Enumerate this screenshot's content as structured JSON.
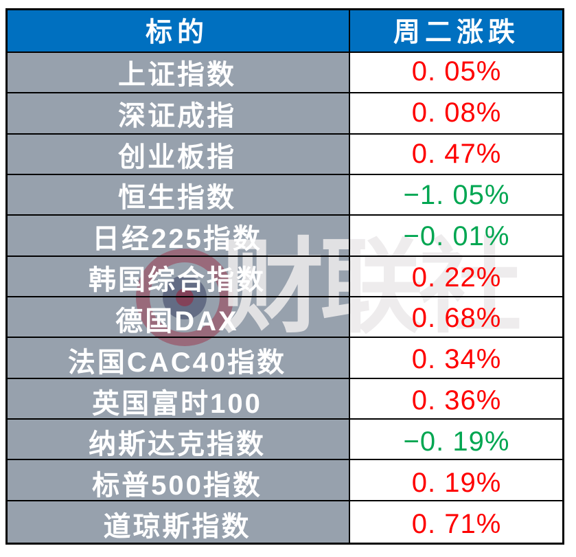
{
  "chart_data": {
    "type": "table",
    "title": "",
    "columns": [
      "标的",
      "周二涨跌"
    ],
    "categories": [
      "上证指数",
      "深证成指",
      "创业板指",
      "恒生指数",
      "日经225指数",
      "韩国综合指数",
      "德国DAX",
      "法国CAC40指数",
      "英国富时100",
      "纳斯达克指数",
      "标普500指数",
      "道琼斯指数"
    ],
    "values_pct": [
      0.05,
      0.08,
      0.47,
      -1.05,
      -0.01,
      0.22,
      0.68,
      0.34,
      0.36,
      -0.19,
      0.19,
      0.71
    ]
  },
  "table": {
    "header": {
      "target": "标的",
      "change": "周二涨跌"
    },
    "rows": [
      {
        "name": "上证指数",
        "value": "0. 05%",
        "direction": "up"
      },
      {
        "name": "深证成指",
        "value": "0. 08%",
        "direction": "up"
      },
      {
        "name": "创业板指",
        "value": "0. 47%",
        "direction": "up"
      },
      {
        "name": "恒生指数",
        "value": "−1. 05%",
        "direction": "down"
      },
      {
        "name": "日经225指数",
        "value": "−0. 01%",
        "direction": "down"
      },
      {
        "name": "韩国综合指数",
        "value": "0. 22%",
        "direction": "up"
      },
      {
        "name": "德国DAX",
        "value": "0. 68%",
        "direction": "up"
      },
      {
        "name": "法国CAC40指数",
        "value": "0. 34%",
        "direction": "up"
      },
      {
        "name": "英国富时100",
        "value": "0. 36%",
        "direction": "up"
      },
      {
        "name": "纳斯达克指数",
        "value": "−0. 19%",
        "direction": "down"
      },
      {
        "name": "标普500指数",
        "value": "0. 19%",
        "direction": "up"
      },
      {
        "name": "道琼斯指数",
        "value": "0. 71%",
        "direction": "up"
      }
    ]
  },
  "watermark": {
    "text": "财联社",
    "logo": "cailian-press-logo"
  },
  "colors": {
    "header_bg": "#0070C0",
    "header_text": "#FFFFFF",
    "label_bg": "#97A1AD",
    "label_text": "#FFFFFF",
    "value_bg": "#FFFFFF",
    "up": "#FE0000",
    "down": "#00A651",
    "border": "#000000"
  }
}
